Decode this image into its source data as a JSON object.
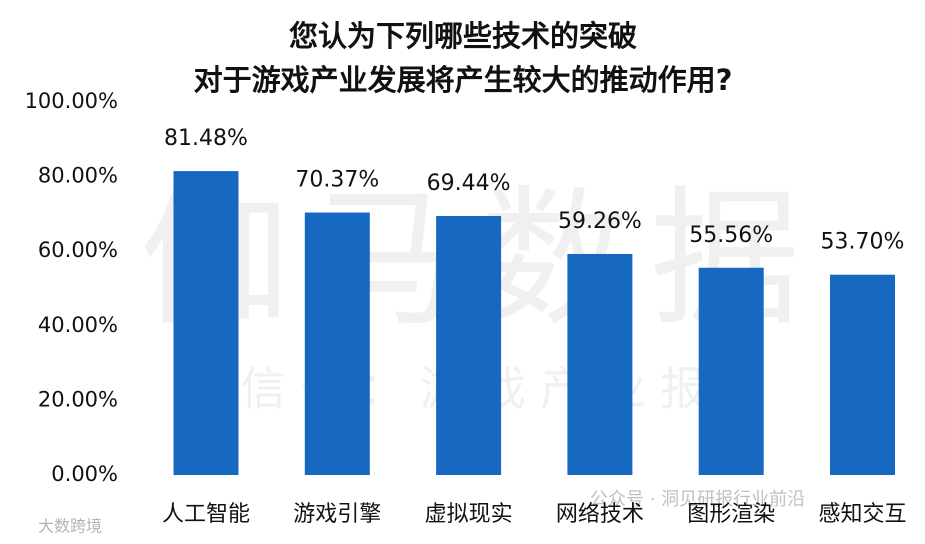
{
  "chart_data": {
    "type": "bar",
    "title": [
      "您认为下列哪些技术的突破",
      "对于游戏产业发展将产生较大的推动作用?"
    ],
    "categories": [
      "人工智能",
      "游戏引擎",
      "虚拟现实",
      "网络技术",
      "图形渲染",
      "感知交互"
    ],
    "values": [
      81.48,
      70.37,
      69.44,
      59.26,
      55.56,
      53.7
    ],
    "value_labels": [
      "81.48%",
      "70.37%",
      "69.44%",
      "59.26%",
      "55.56%",
      "53.70%"
    ],
    "color": "#1668c1",
    "ylim": [
      0,
      100
    ],
    "yticks": [
      {
        "value": 0,
        "label": "0.00%"
      },
      {
        "value": 20,
        "label": "20.00%"
      },
      {
        "value": 40,
        "label": "40.00%"
      },
      {
        "value": 60,
        "label": "60.00%"
      },
      {
        "value": 80,
        "label": "80.00%"
      },
      {
        "value": 100,
        "label": "100.00%"
      }
    ],
    "grid": false
  },
  "watermarks": [
    "伽马数据",
    "微信号：游戏产业报告",
    "公众号 · 洞见研报行业前沿",
    "大数跨境"
  ]
}
